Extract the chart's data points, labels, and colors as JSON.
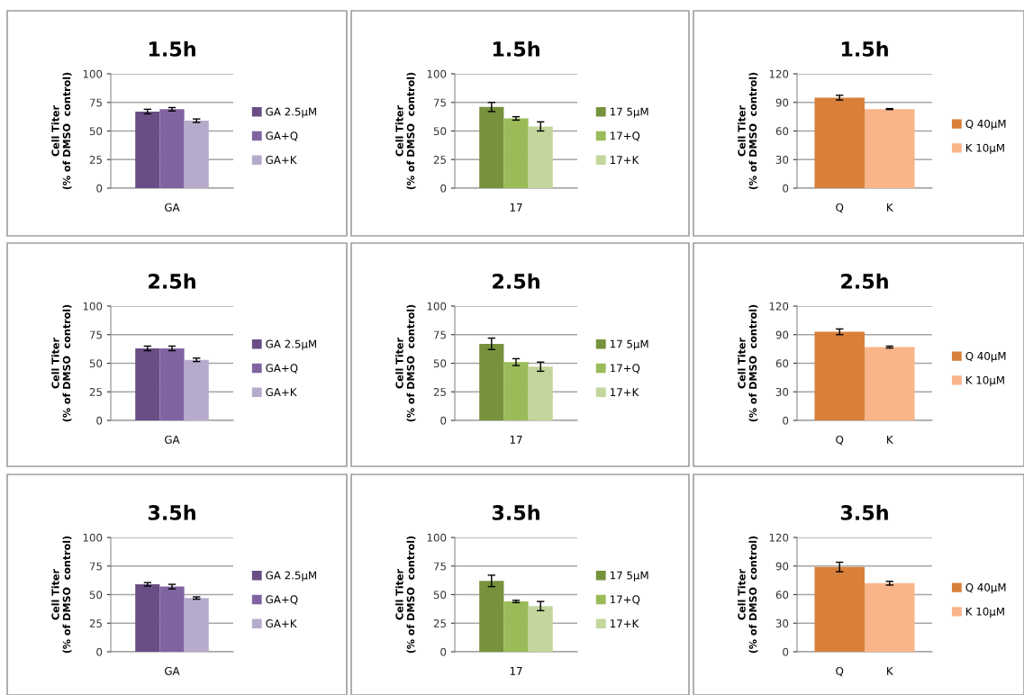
{
  "chart_data": [
    {
      "type": "bar",
      "title": "1.5h",
      "ylabel": "Cell Titer\n(% of DMSO  control)",
      "categories": [
        "GA"
      ],
      "ylim": [
        0,
        100
      ],
      "yticks": [
        0,
        25,
        50,
        75,
        100
      ],
      "grid": "y",
      "legend": "right",
      "series": [
        {
          "name": "GA 2.5µM",
          "color": "#684e84",
          "values": [
            67
          ],
          "errors": [
            2
          ]
        },
        {
          "name": "GA+Q",
          "color": "#8064a2",
          "values": [
            69
          ],
          "errors": [
            1.5
          ]
        },
        {
          "name": "GA+K",
          "color": "#b7abcc",
          "values": [
            59
          ],
          "errors": [
            1.5
          ]
        }
      ]
    },
    {
      "type": "bar",
      "title": "1.5h",
      "ylabel": "Cell Titer\n(% of DMSO  control)",
      "categories": [
        "17"
      ],
      "ylim": [
        0,
        100
      ],
      "yticks": [
        0,
        25,
        50,
        75,
        100
      ],
      "grid": "y",
      "legend": "right",
      "series": [
        {
          "name": "17 5µM",
          "color": "#76923c",
          "values": [
            71
          ],
          "errors": [
            4
          ]
        },
        {
          "name": "17+Q",
          "color": "#9bbb59",
          "values": [
            61
          ],
          "errors": [
            1.5
          ]
        },
        {
          "name": "17+K",
          "color": "#c3d69b",
          "values": [
            54
          ],
          "errors": [
            4
          ]
        }
      ]
    },
    {
      "type": "bar",
      "title": "1.5h",
      "ylabel": "Cell Titer\n(% of DMSO  control)",
      "categories": [
        "Q",
        "K"
      ],
      "ylim": [
        0,
        120
      ],
      "yticks": [
        0,
        30,
        60,
        90,
        120
      ],
      "grid": "y",
      "legend": "right",
      "stacked": true,
      "series": [
        {
          "name": "Q 40µM",
          "color": "#d8803a",
          "values": [
            95,
            null
          ],
          "errors": [
            2.5,
            null
          ]
        },
        {
          "name": "K 10µM",
          "color": "#f9b48a",
          "values": [
            null,
            83
          ],
          "errors": [
            null,
            0.5
          ]
        }
      ]
    },
    {
      "type": "bar",
      "title": "2.5h",
      "ylabel": "Cell Titer\n(% of DMSO  control)",
      "categories": [
        "GA"
      ],
      "ylim": [
        0,
        100
      ],
      "yticks": [
        0,
        25,
        50,
        75,
        100
      ],
      "grid": "y",
      "legend": "right",
      "series": [
        {
          "name": "GA 2.5µM",
          "color": "#684e84",
          "values": [
            63
          ],
          "errors": [
            2
          ]
        },
        {
          "name": "GA+Q",
          "color": "#8064a2",
          "values": [
            63
          ],
          "errors": [
            2
          ]
        },
        {
          "name": "GA+K",
          "color": "#b7abcc",
          "values": [
            53
          ],
          "errors": [
            1.5
          ]
        }
      ]
    },
    {
      "type": "bar",
      "title": "2.5h",
      "ylabel": "Cell Titer\n(% of DMSO  control)",
      "categories": [
        "17"
      ],
      "ylim": [
        0,
        100
      ],
      "yticks": [
        0,
        25,
        50,
        75,
        100
      ],
      "grid": "y",
      "legend": "right",
      "series": [
        {
          "name": "17 5µM",
          "color": "#76923c",
          "values": [
            67
          ],
          "errors": [
            5
          ]
        },
        {
          "name": "17+Q",
          "color": "#9bbb59",
          "values": [
            51
          ],
          "errors": [
            3
          ]
        },
        {
          "name": "17+K",
          "color": "#c3d69b",
          "values": [
            47
          ],
          "errors": [
            4
          ]
        }
      ]
    },
    {
      "type": "bar",
      "title": "2.5h",
      "ylabel": "Cell Titer\n(% of DMSO  control)",
      "categories": [
        "Q",
        "K"
      ],
      "ylim": [
        0,
        120
      ],
      "yticks": [
        0,
        30,
        60,
        90,
        120
      ],
      "grid": "y",
      "legend": "right",
      "stacked": true,
      "series": [
        {
          "name": "Q 40µM",
          "color": "#d8803a",
          "values": [
            93,
            null
          ],
          "errors": [
            3,
            null
          ]
        },
        {
          "name": "K 10µM",
          "color": "#f9b48a",
          "values": [
            null,
            77
          ],
          "errors": [
            null,
            1
          ]
        }
      ]
    },
    {
      "type": "bar",
      "title": "3.5h",
      "ylabel": "Cell Titer\n(% of DMSO  control)",
      "categories": [
        "GA"
      ],
      "ylim": [
        0,
        100
      ],
      "yticks": [
        0,
        25,
        50,
        75,
        100
      ],
      "grid": "y",
      "legend": "right",
      "series": [
        {
          "name": "GA 2.5µM",
          "color": "#684e84",
          "values": [
            59
          ],
          "errors": [
            1.5
          ]
        },
        {
          "name": "GA+Q",
          "color": "#8064a2",
          "values": [
            57
          ],
          "errors": [
            2
          ]
        },
        {
          "name": "GA+K",
          "color": "#b7abcc",
          "values": [
            47
          ],
          "errors": [
            1
          ]
        }
      ]
    },
    {
      "type": "bar",
      "title": "3.5h",
      "ylabel": "Cell Titer\n(% of DMSO  control)",
      "categories": [
        "17"
      ],
      "ylim": [
        0,
        100
      ],
      "yticks": [
        0,
        25,
        50,
        75,
        100
      ],
      "grid": "y",
      "legend": "right",
      "series": [
        {
          "name": "17 5µM",
          "color": "#76923c",
          "values": [
            62
          ],
          "errors": [
            5
          ]
        },
        {
          "name": "17+Q",
          "color": "#9bbb59",
          "values": [
            44
          ],
          "errors": [
            1
          ]
        },
        {
          "name": "17+K",
          "color": "#c3d69b",
          "values": [
            40
          ],
          "errors": [
            4
          ]
        }
      ]
    },
    {
      "type": "bar",
      "title": "3.5h",
      "ylabel": "Cell Titer\n(% of DMSO  control)",
      "categories": [
        "Q",
        "K"
      ],
      "ylim": [
        0,
        120
      ],
      "yticks": [
        0,
        30,
        60,
        90,
        120
      ],
      "grid": "y",
      "legend": "right",
      "stacked": true,
      "series": [
        {
          "name": "Q 40µM",
          "color": "#d8803a",
          "values": [
            89,
            null
          ],
          "errors": [
            5,
            null
          ]
        },
        {
          "name": "K 10µM",
          "color": "#f9b48a",
          "values": [
            null,
            72
          ],
          "errors": [
            null,
            2
          ]
        }
      ]
    }
  ]
}
